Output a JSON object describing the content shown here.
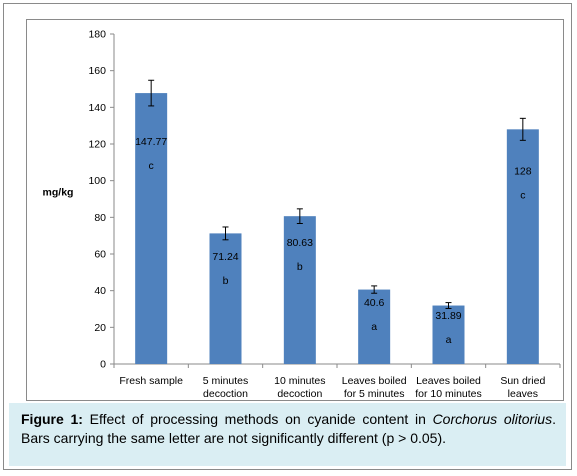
{
  "chart_data": {
    "type": "bar",
    "categories": [
      [
        "Fresh sample"
      ],
      [
        "5 minutes",
        "decoction"
      ],
      [
        "10 minutes",
        "decoction"
      ],
      [
        "Leaves boiled",
        "for 5 minutes"
      ],
      [
        "Leaves boiled",
        "for 10 minutes"
      ],
      [
        "Sun dried",
        "leaves"
      ]
    ],
    "values": [
      147.77,
      71.24,
      80.63,
      40.6,
      31.89,
      128
    ],
    "value_labels": [
      "147.77",
      "71.24",
      "80.63",
      "40.6",
      "31.89",
      "128"
    ],
    "errors": [
      7,
      3.5,
      4,
      2,
      1.6,
      6
    ],
    "significance_letters": [
      "c",
      "b",
      "b",
      "a",
      "a",
      "c"
    ],
    "ylabel": "mg/kg",
    "ylim": [
      0,
      180
    ],
    "yticks": [
      0,
      20,
      40,
      60,
      80,
      100,
      120,
      140,
      160,
      180
    ],
    "grid": false,
    "legend": "none",
    "bar_color": "#4f81bd"
  },
  "caption": {
    "label": "Figure 1:",
    "text_before_italic": " Effect of processing methods on cyanide content in ",
    "italic_text": "Corchorus olitorius",
    "text_after_italic": ". Bars carrying the same letter are not significantly different (p > 0.05)."
  }
}
